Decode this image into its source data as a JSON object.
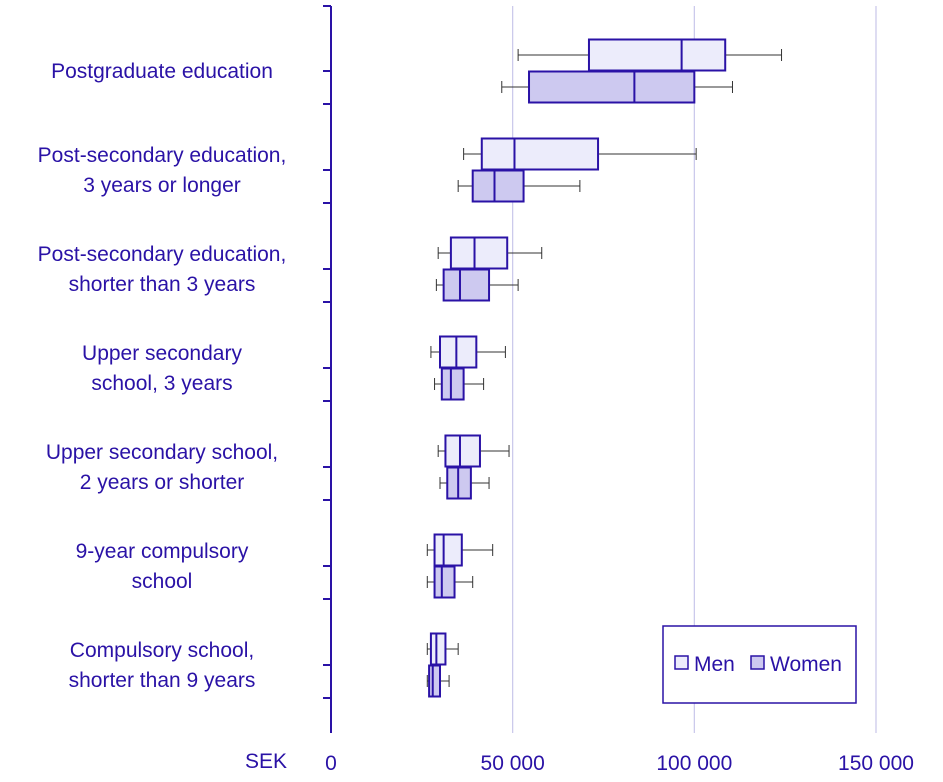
{
  "chart_data": {
    "type": "boxplot",
    "orientation": "horizontal",
    "x_unit_label": "SEK",
    "xlim": [
      0,
      150000
    ],
    "x_ticks": [
      0,
      50000,
      100000,
      150000
    ],
    "x_tick_labels": [
      "0",
      "50 000",
      "100 000",
      "150 000"
    ],
    "grid": "vertical",
    "legend_position": "bottom-right",
    "colors": {
      "axis": "#2a12a6",
      "grid": "#c8c6ea",
      "men_fill": "#ececfb",
      "women_fill": "#cdc9f0",
      "whisker": "#333333"
    },
    "series": [
      {
        "key": "men",
        "name": "Men"
      },
      {
        "key": "women",
        "name": "Women"
      }
    ],
    "categories": [
      {
        "label": [
          "Postgraduate education"
        ],
        "men": {
          "min": 51500,
          "q1": 71000,
          "median": 96500,
          "q3": 108500,
          "max": 124000
        },
        "women": {
          "min": 47000,
          "q1": 54500,
          "median": 83500,
          "q3": 100000,
          "max": 110500
        }
      },
      {
        "label": [
          "Post-secondary education,",
          "3 years or longer"
        ],
        "men": {
          "min": 36500,
          "q1": 41500,
          "median": 50500,
          "q3": 73500,
          "max": 100500
        },
        "women": {
          "min": 35000,
          "q1": 39000,
          "median": 45000,
          "q3": 53000,
          "max": 68500
        }
      },
      {
        "label": [
          "Post-secondary education,",
          "shorter than 3 years"
        ],
        "men": {
          "min": 29500,
          "q1": 33000,
          "median": 39500,
          "q3": 48500,
          "max": 58000
        },
        "women": {
          "min": 29000,
          "q1": 31000,
          "median": 35500,
          "q3": 43500,
          "max": 51500
        }
      },
      {
        "label": [
          "Upper secondary",
          "school, 3 years"
        ],
        "men": {
          "min": 27500,
          "q1": 30000,
          "median": 34500,
          "q3": 40000,
          "max": 48000
        },
        "women": {
          "min": 28500,
          "q1": 30500,
          "median": 33000,
          "q3": 36500,
          "max": 42000
        }
      },
      {
        "label": [
          "Upper secondary school,",
          "2 years or shorter"
        ],
        "men": {
          "min": 29500,
          "q1": 31500,
          "median": 35500,
          "q3": 41000,
          "max": 49000
        },
        "women": {
          "min": 30000,
          "q1": 32000,
          "median": 35000,
          "q3": 38500,
          "max": 43500
        }
      },
      {
        "label": [
          "9-year compulsory",
          "school"
        ],
        "men": {
          "min": 26500,
          "q1": 28500,
          "median": 31000,
          "q3": 36000,
          "max": 44500
        },
        "women": {
          "min": 26500,
          "q1": 28500,
          "median": 30500,
          "q3": 34000,
          "max": 39000
        }
      },
      {
        "label": [
          "Compulsory school,",
          "shorter than 9 years"
        ],
        "men": {
          "min": 26500,
          "q1": 27500,
          "median": 29000,
          "q3": 31500,
          "max": 35000
        },
        "women": {
          "min": 26500,
          "q1": 27000,
          "median": 28000,
          "q3": 30000,
          "max": 32500
        }
      }
    ]
  }
}
